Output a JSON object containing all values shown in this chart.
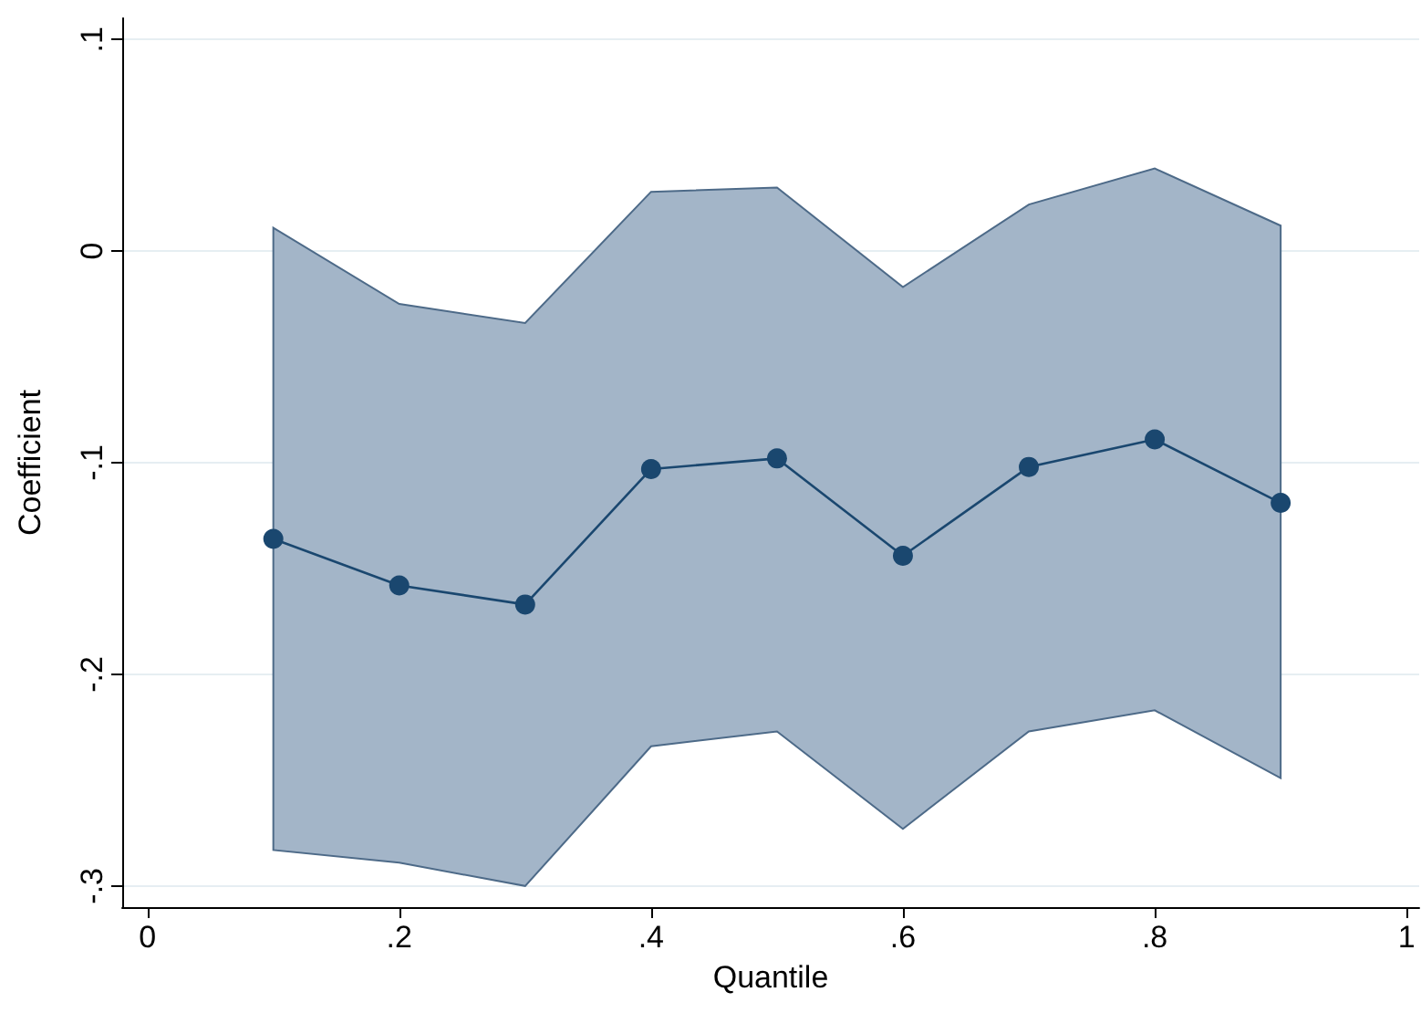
{
  "chart_data": {
    "type": "line",
    "xlabel": "Quantile",
    "ylabel": "Coefficient",
    "x": [
      0.1,
      0.2,
      0.3,
      0.4,
      0.5,
      0.6,
      0.7,
      0.8,
      0.9
    ],
    "series": [
      {
        "color": "#1a476f",
        "values": [
          -0.136,
          -0.158,
          -0.167,
          -0.103,
          -0.098,
          -0.144,
          -0.102,
          -0.089,
          -0.119
        ],
        "lower": [
          -0.283,
          -0.289,
          -0.3,
          -0.234,
          -0.227,
          -0.273,
          -0.227,
          -0.217,
          -0.249
        ],
        "upper": [
          0.011,
          -0.025,
          -0.034,
          0.028,
          0.03,
          -0.017,
          0.022,
          0.039,
          0.012
        ]
      }
    ],
    "xlim": [
      -0.02,
      1.01
    ],
    "ylim": [
      -0.31,
      0.11
    ],
    "xticks": [
      0,
      {
        "value": 0.2,
        "label": ".2"
      },
      {
        "value": 0.4,
        "label": ".4"
      },
      {
        "value": 0.6,
        "label": ".6"
      },
      {
        "value": 0.8,
        "label": ".8"
      },
      1
    ],
    "yticks": [
      {
        "value": -0.3,
        "label": "-.3"
      },
      {
        "value": -0.2,
        "label": "-.2"
      },
      {
        "value": -0.1,
        "label": "-.1"
      },
      0,
      {
        "value": 0.1,
        "label": ".1"
      }
    ],
    "grid": "y",
    "marker": "circle",
    "line_style": "solid"
  }
}
